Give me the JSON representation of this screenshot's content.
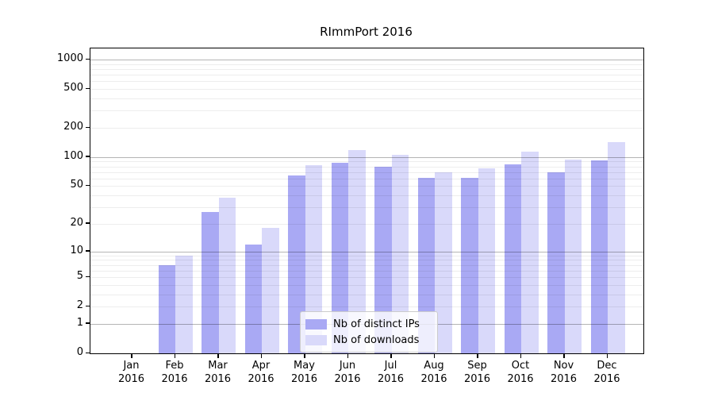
{
  "chart_data": {
    "type": "bar",
    "title": "RImmPort 2016",
    "months": [
      "Jan",
      "Feb",
      "Mar",
      "Apr",
      "May",
      "Jun",
      "Jul",
      "Aug",
      "Sep",
      "Oct",
      "Nov",
      "Dec"
    ],
    "year": "2016",
    "series": [
      {
        "name": "Nb of distinct IPs",
        "color": "#a9a9f4",
        "values": [
          0,
          7,
          27,
          12,
          64,
          88,
          79,
          61,
          61,
          84,
          70,
          93
        ]
      },
      {
        "name": "Nb of downloads",
        "color": "#d9d9fa",
        "values": [
          0,
          9,
          38,
          18,
          83,
          119,
          106,
          70,
          77,
          114,
          95,
          142
        ]
      }
    ],
    "y_tick_labels": [
      "0",
      "1",
      "2",
      "5",
      "10",
      "20",
      "50",
      "100",
      "200",
      "500",
      "1000"
    ],
    "y_tick_values": [
      0,
      1,
      2,
      5,
      10,
      20,
      50,
      100,
      200,
      500,
      1000
    ],
    "y_scale": "log10(1+v)",
    "ylim": [
      0,
      1300
    ],
    "grid": {
      "major_values": [
        1,
        10,
        100,
        1000
      ],
      "minor_subs": [
        2,
        3,
        4,
        5,
        6,
        7,
        8,
        9
      ],
      "minor_decades": [
        1,
        10,
        100
      ]
    },
    "legend_position": "lower center",
    "colors": {
      "grid_major": "rgba(0,0,0,0.29)",
      "grid_minor": "rgba(0,0,0,0.07)",
      "spine": "#000000",
      "background": "#ffffff"
    }
  }
}
